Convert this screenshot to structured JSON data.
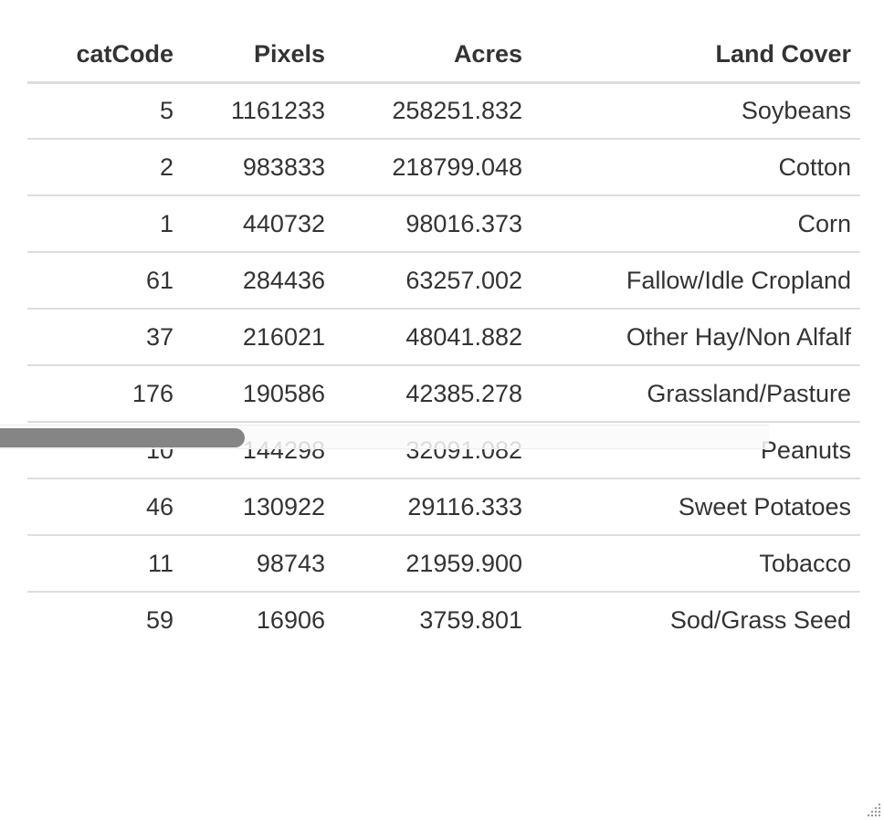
{
  "table": {
    "columns": [
      "catCode",
      "Pixels",
      "Acres",
      "Land Cover"
    ],
    "rows": [
      [
        "5",
        "1161233",
        "258251.832",
        "Soybeans"
      ],
      [
        "2",
        "983833",
        "218799.048",
        "Cotton"
      ],
      [
        "1",
        "440732",
        "98016.373",
        "Corn"
      ],
      [
        "61",
        "284436",
        "63257.002",
        "Fallow/Idle Cropland"
      ],
      [
        "37",
        "216021",
        "48041.882",
        "Other Hay/Non Alfalf"
      ],
      [
        "176",
        "190586",
        "42385.278",
        "Grassland/Pasture"
      ],
      [
        "10",
        "144298",
        "32091.082",
        "Peanuts"
      ],
      [
        "46",
        "130922",
        "29116.333",
        "Sweet Potatoes"
      ],
      [
        "11",
        "98743",
        "21959.900",
        "Tobacco"
      ],
      [
        "59",
        "16906",
        "3759.801",
        "Sod/Grass Seed"
      ]
    ]
  },
  "scrollbar": {
    "horizontal_position": 0.0
  },
  "icons": {
    "resize": "resize-grip-icon"
  }
}
